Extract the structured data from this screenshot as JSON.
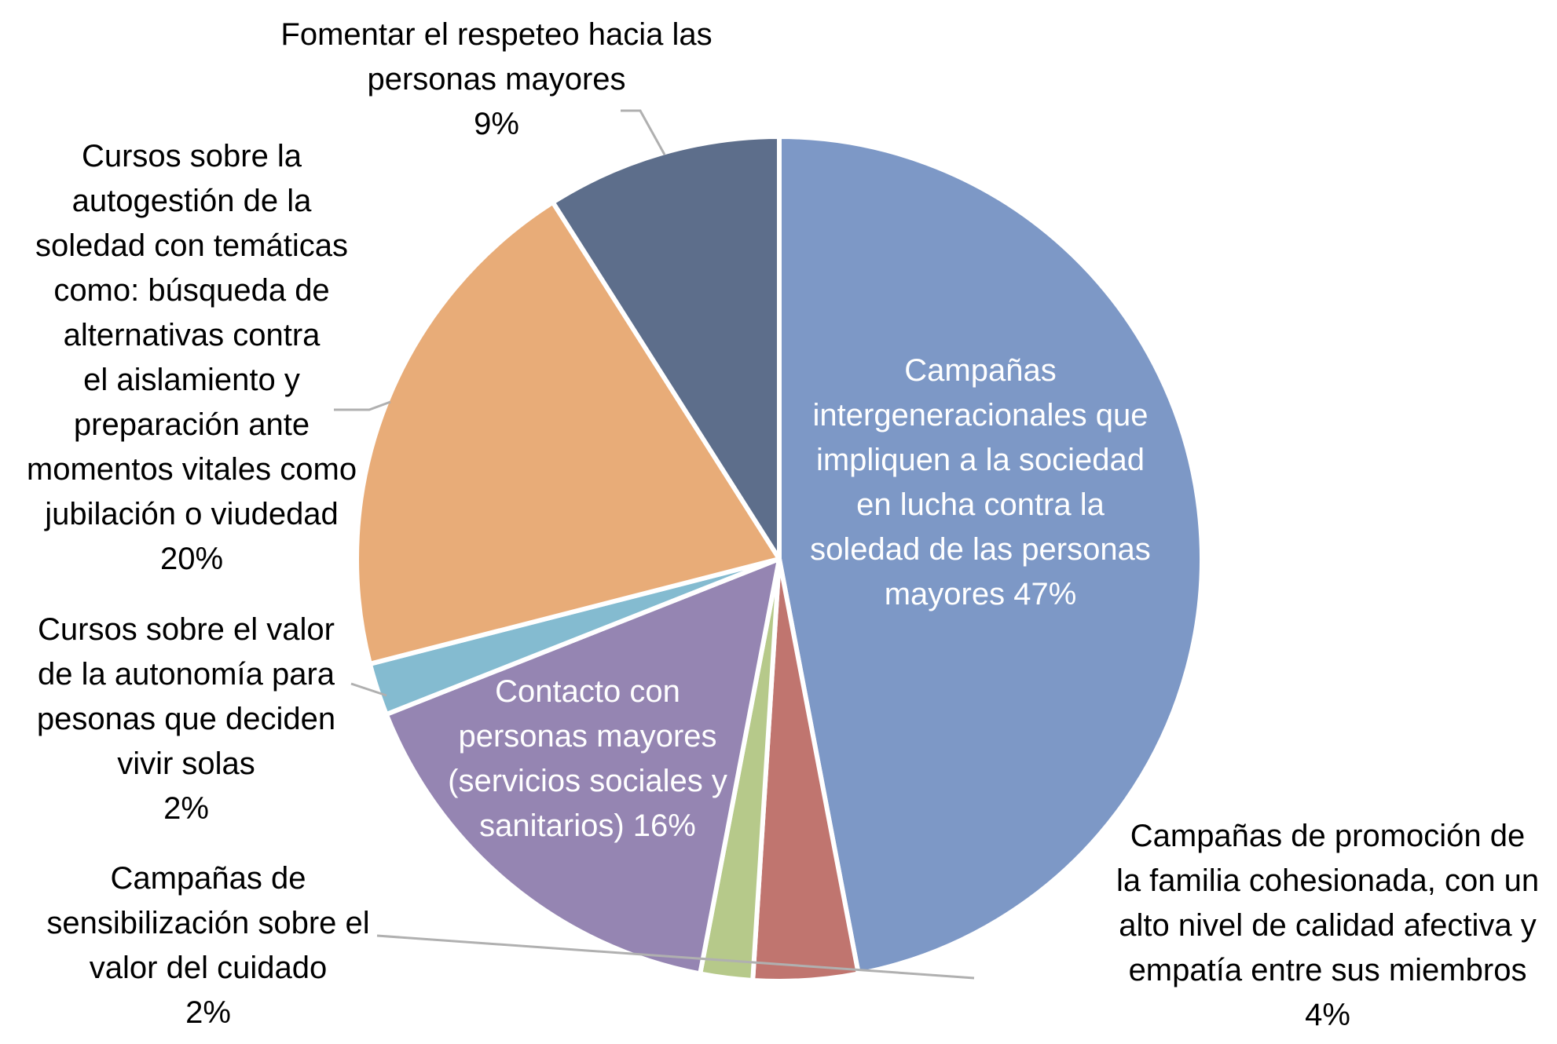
{
  "chart_data": {
    "type": "pie",
    "title": "",
    "start_angle_deg": 0,
    "direction": "clockwise",
    "slices": [
      {
        "label": "Campañas intergeneracionales que impliquen a la sociedad en lucha contra la soledad de las personas mayores",
        "value": 47,
        "value_label": "47%",
        "color": "#7d98c6",
        "label_lines": [
          "Campañas",
          "intergeneracionales que",
          "impliquen a la sociedad",
          "en lucha contra la",
          "soledad de las personas",
          "mayores 47%"
        ]
      },
      {
        "label": "Campañas de promoción de la familia cohesionada, con un alto nivel de calidad afectiva y empatía entre sus miembros",
        "value": 4,
        "value_label": "4%",
        "color": "#c0756f",
        "label_lines": [
          "Campañas de promoción de",
          "la familia cohesionada, con un",
          "alto nivel de calidad afectiva y",
          "empatía entre sus miembros",
          "4%"
        ]
      },
      {
        "label": "Campañas de sensibilización sobre el valor del cuidado",
        "value": 2,
        "value_label": "2%",
        "color": "#b6c98a",
        "label_lines": [
          "Campañas de",
          "sensibilización sobre el",
          "valor del cuidado",
          "2%"
        ]
      },
      {
        "label": "Contacto con personas mayores (servicios sociales y sanitarios)",
        "value": 16,
        "value_label": "16%",
        "color": "#9585b2",
        "label_lines": [
          "Contacto con",
          "personas mayores",
          "(servicios sociales y",
          "sanitarios) 16%"
        ]
      },
      {
        "label": "Cursos sobre el valor de la autonomía para pesonas que deciden vivir solas",
        "value": 2,
        "value_label": "2%",
        "color": "#84bbd0",
        "label_lines": [
          "Cursos sobre el valor",
          "de la autonomía para",
          "pesonas que deciden",
          "vivir solas",
          "2%"
        ]
      },
      {
        "label": "Cursos sobre la autogestión de la soledad con temáticas como: búsqueda de alternativas contra el aislamiento y preparación ante momentos vitales como jubilación o viudedad",
        "value": 20,
        "value_label": "20%",
        "color": "#e8ac78",
        "label_lines": [
          "Cursos sobre la",
          "autogestión de la",
          "soledad con temáticas",
          "como: búsqueda de",
          "alternativas contra",
          "el aislamiento y",
          "preparación ante",
          "momentos vitales como",
          "jubilación o viudedad",
          "20%"
        ]
      },
      {
        "label": "Fomentar el respeteo hacia las personas mayores",
        "value": 9,
        "value_label": "9%",
        "color": "#5d6e8b",
        "label_lines": [
          "Fomentar el respeteo hacia las",
          "personas mayores",
          "9%"
        ]
      }
    ]
  }
}
